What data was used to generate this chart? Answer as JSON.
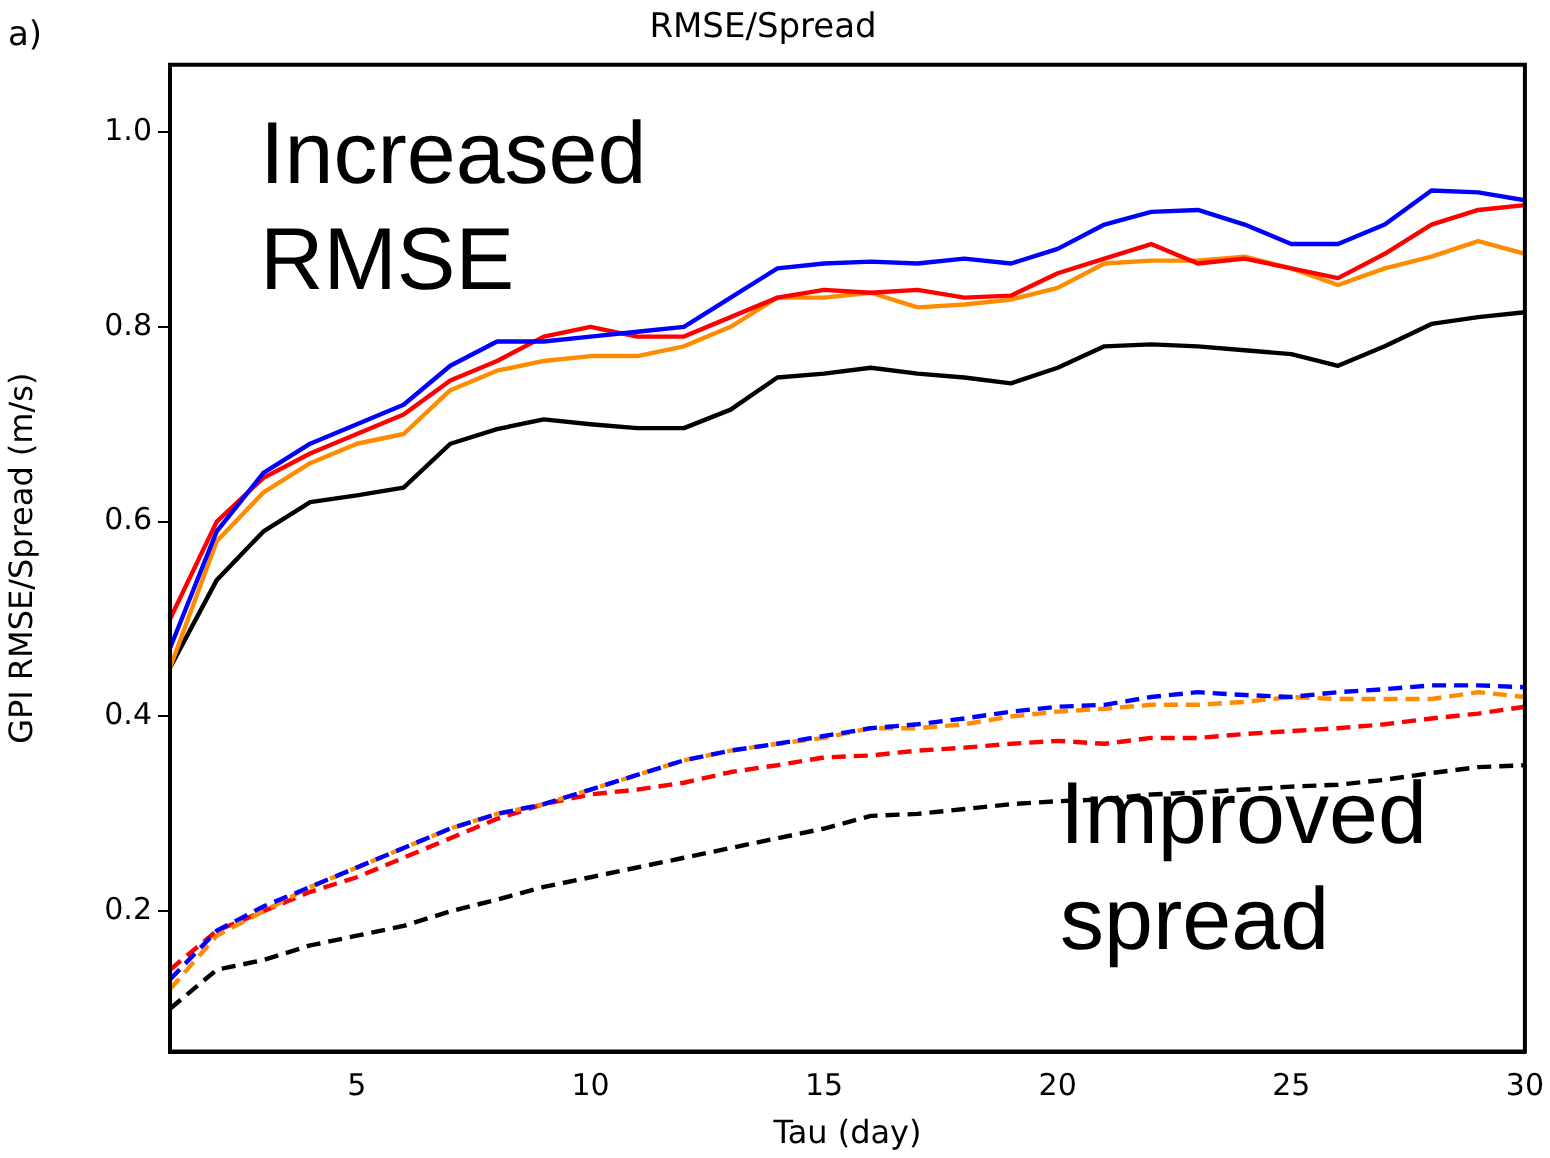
{
  "chart_data": {
    "type": "line",
    "title": "RMSE/Spread",
    "xlabel": "Tau (day)",
    "ylabel": "GPI RMSE/Spread (m/s)",
    "x": [
      1,
      2,
      3,
      4,
      5,
      6,
      7,
      8,
      9,
      10,
      11,
      12,
      13,
      14,
      15,
      16,
      17,
      18,
      19,
      20,
      21,
      22,
      23,
      24,
      25,
      26,
      27,
      28,
      29,
      30
    ],
    "xlim": [
      1,
      30
    ],
    "xticks": [
      5,
      10,
      15,
      20,
      25,
      30
    ],
    "ylim": [
      0.056,
      1.069
    ],
    "yticks": [
      0.2,
      0.4,
      0.6,
      0.8,
      {
        "value": 1,
        "label": "1.0"
      }
    ],
    "grid": false,
    "legend": false,
    "marker": "none",
    "annotations": [
      "a)",
      "Increased\nRMSE",
      "Improved\nspread"
    ],
    "series": [
      {
        "color": "#0000ff",
        "line_style": "solid",
        "values": [
          0.47,
          0.59,
          0.65,
          0.68,
          0.7,
          0.72,
          0.76,
          0.785,
          0.785,
          0.79,
          0.795,
          0.8,
          0.83,
          0.86,
          0.865,
          0.867,
          0.865,
          0.87,
          0.865,
          0.88,
          0.905,
          0.918,
          0.92,
          0.905,
          0.885,
          0.885,
          0.905,
          0.94,
          0.938,
          0.93
        ]
      },
      {
        "color": "#ff0000",
        "line_style": "solid",
        "values": [
          0.5,
          0.6,
          0.645,
          0.67,
          0.69,
          0.71,
          0.745,
          0.765,
          0.79,
          0.8,
          0.79,
          0.79,
          0.81,
          0.83,
          0.838,
          0.835,
          0.838,
          0.83,
          0.832,
          0.855,
          0.87,
          0.885,
          0.865,
          0.87,
          0.86,
          0.85,
          0.875,
          0.905,
          0.92,
          0.925
        ]
      },
      {
        "color": "#ff8c00",
        "line_style": "solid",
        "values": [
          0.45,
          0.58,
          0.63,
          0.66,
          0.68,
          0.69,
          0.735,
          0.755,
          0.765,
          0.77,
          0.77,
          0.78,
          0.8,
          0.83,
          0.83,
          0.835,
          0.82,
          0.823,
          0.828,
          0.84,
          0.865,
          0.868,
          0.868,
          0.872,
          0.86,
          0.843,
          0.86,
          0.872,
          0.888,
          0.875
        ]
      },
      {
        "color": "#000000",
        "line_style": "solid",
        "values": [
          0.45,
          0.54,
          0.59,
          0.62,
          0.627,
          0.635,
          0.68,
          0.695,
          0.705,
          0.7,
          0.696,
          0.696,
          0.715,
          0.748,
          0.752,
          0.758,
          0.752,
          0.748,
          0.742,
          0.758,
          0.78,
          0.782,
          0.78,
          0.776,
          0.772,
          0.76,
          0.78,
          0.803,
          0.81,
          0.815
        ]
      },
      {
        "color": "#0000ff",
        "line_style": "dashed",
        "values": [
          0.13,
          0.18,
          0.205,
          0.225,
          0.245,
          0.265,
          0.285,
          0.3,
          0.31,
          0.325,
          0.34,
          0.355,
          0.365,
          0.372,
          0.38,
          0.388,
          0.392,
          0.398,
          0.405,
          0.41,
          0.412,
          0.42,
          0.425,
          0.422,
          0.42,
          0.425,
          0.428,
          0.432,
          0.432,
          0.43
        ]
      },
      {
        "color": "#ff8c00",
        "line_style": "dashed",
        "values": [
          0.12,
          0.175,
          0.2,
          0.225,
          0.245,
          0.265,
          0.285,
          0.3,
          0.31,
          0.325,
          0.34,
          0.355,
          0.365,
          0.372,
          0.378,
          0.388,
          0.388,
          0.392,
          0.4,
          0.405,
          0.408,
          0.412,
          0.412,
          0.415,
          0.42,
          0.418,
          0.418,
          0.418,
          0.425,
          0.42
        ]
      },
      {
        "color": "#ff0000",
        "line_style": "dashed",
        "values": [
          0.14,
          0.18,
          0.2,
          0.22,
          0.235,
          0.255,
          0.275,
          0.295,
          0.31,
          0.32,
          0.325,
          0.332,
          0.343,
          0.35,
          0.358,
          0.36,
          0.365,
          0.368,
          0.372,
          0.375,
          0.372,
          0.378,
          0.378,
          0.382,
          0.385,
          0.388,
          0.392,
          0.398,
          0.403,
          0.41
        ]
      },
      {
        "color": "#000000",
        "line_style": "dashed",
        "values": [
          0.1,
          0.14,
          0.15,
          0.165,
          0.175,
          0.185,
          0.2,
          0.212,
          0.225,
          0.235,
          0.245,
          0.255,
          0.265,
          0.275,
          0.285,
          0.298,
          0.3,
          0.305,
          0.31,
          0.313,
          0.315,
          0.32,
          0.322,
          0.325,
          0.328,
          0.33,
          0.335,
          0.342,
          0.348,
          0.35
        ]
      }
    ]
  }
}
